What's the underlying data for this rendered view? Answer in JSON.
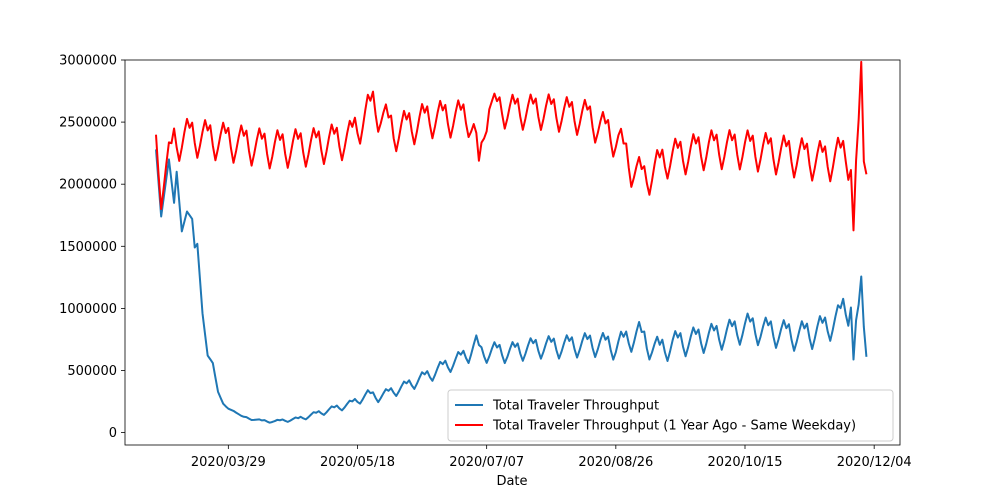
{
  "chart_data": {
    "type": "line",
    "title": "",
    "xlabel": "Date",
    "ylabel": "",
    "x_start": "2020-03-01",
    "x_end": "2020-12-01",
    "xlim": [
      "2020-02-18",
      "2020-12-14"
    ],
    "ylim": [
      -100000,
      3000000
    ],
    "x_ticks": [
      "2020/03/29",
      "2020/05/18",
      "2020/07/07",
      "2020/08/26",
      "2020/10/15",
      "2020/12/04"
    ],
    "y_ticks": [
      "0",
      "500000",
      "1000000",
      "1500000",
      "2000000",
      "2500000",
      "3000000"
    ],
    "grid": false,
    "legend_position": "lower-right",
    "series": [
      {
        "name": "Total Traveler Throughput",
        "color": "#1f77b4",
        "anchors": [
          [
            "2020-03-01",
            2280000
          ],
          [
            "2020-03-03",
            1740000
          ],
          [
            "2020-03-06",
            2200000
          ],
          [
            "2020-03-08",
            1850000
          ],
          [
            "2020-03-09",
            2100000
          ],
          [
            "2020-03-11",
            1620000
          ],
          [
            "2020-03-13",
            1780000
          ],
          [
            "2020-03-15",
            1720000
          ],
          [
            "2020-03-16",
            1490000
          ],
          [
            "2020-03-17",
            1520000
          ],
          [
            "2020-03-19",
            960000
          ],
          [
            "2020-03-21",
            620000
          ],
          [
            "2020-03-23",
            560000
          ],
          [
            "2020-03-25",
            330000
          ],
          [
            "2020-03-27",
            230000
          ],
          [
            "2020-03-29",
            190000
          ],
          [
            "2020-03-31",
            180000
          ],
          [
            "2020-04-03",
            130000
          ],
          [
            "2020-04-07",
            110000
          ],
          [
            "2020-04-11",
            95000
          ],
          [
            "2020-04-16",
            90000
          ],
          [
            "2020-04-20",
            100000
          ],
          [
            "2020-04-25",
            110000
          ],
          [
            "2020-04-30",
            140000
          ],
          [
            "2020-05-05",
            170000
          ],
          [
            "2020-05-10",
            200000
          ],
          [
            "2020-05-15",
            230000
          ],
          [
            "2020-05-18",
            260000
          ],
          [
            "2020-05-22",
            310000
          ],
          [
            "2020-05-26",
            290000
          ],
          [
            "2020-05-31",
            330000
          ],
          [
            "2020-06-05",
            370000
          ],
          [
            "2020-06-10",
            420000
          ],
          [
            "2020-06-15",
            470000
          ],
          [
            "2020-06-20",
            530000
          ],
          [
            "2020-06-25",
            580000
          ],
          [
            "2020-06-30",
            640000
          ],
          [
            "2020-07-03",
            720000
          ],
          [
            "2020-07-05",
            640000
          ],
          [
            "2020-07-10",
            660000
          ],
          [
            "2020-07-15",
            650000
          ],
          [
            "2020-07-20",
            670000
          ],
          [
            "2020-07-25",
            690000
          ],
          [
            "2020-07-31",
            700000
          ],
          [
            "2020-08-05",
            700000
          ],
          [
            "2020-08-10",
            710000
          ],
          [
            "2020-08-15",
            720000
          ],
          [
            "2020-08-20",
            720000
          ],
          [
            "2020-08-26",
            700000
          ],
          [
            "2020-08-31",
            760000
          ],
          [
            "2020-09-04",
            800000
          ],
          [
            "2020-09-07",
            720000
          ],
          [
            "2020-09-12",
            670000
          ],
          [
            "2020-09-17",
            720000
          ],
          [
            "2020-09-22",
            740000
          ],
          [
            "2020-09-27",
            760000
          ],
          [
            "2020-10-02",
            780000
          ],
          [
            "2020-10-07",
            800000
          ],
          [
            "2020-10-12",
            830000
          ],
          [
            "2020-10-16",
            860000
          ],
          [
            "2020-10-21",
            830000
          ],
          [
            "2020-10-26",
            820000
          ],
          [
            "2020-10-31",
            800000
          ],
          [
            "2020-11-05",
            790000
          ],
          [
            "2020-11-10",
            810000
          ],
          [
            "2020-11-15",
            850000
          ],
          [
            "2020-11-20",
            920000
          ],
          [
            "2020-11-22",
            1000000
          ],
          [
            "2020-11-24",
            1000000
          ],
          [
            "2020-11-25",
            1070000
          ],
          [
            "2020-11-26",
            560000
          ],
          [
            "2020-11-27",
            800000
          ],
          [
            "2020-11-29",
            1180000
          ],
          [
            "2020-11-30",
            900000
          ],
          [
            "2020-12-01",
            750000
          ]
        ],
        "weekly_amplitude": [
          [
            "2020-03-01",
            0
          ],
          [
            "2020-03-20",
            0
          ],
          [
            "2020-04-20",
            15000
          ],
          [
            "2020-06-01",
            50000
          ],
          [
            "2020-07-10",
            90000
          ],
          [
            "2020-09-01",
            120000
          ],
          [
            "2020-11-20",
            140000
          ],
          [
            "2020-12-01",
            140000
          ]
        ]
      },
      {
        "name": "Total Traveler Throughput (1 Year Ago - Same Weekday)",
        "color": "#ff0000",
        "anchors": [
          [
            "2020-03-01",
            2300000
          ],
          [
            "2020-03-03",
            1980000
          ],
          [
            "2020-03-08",
            2350000
          ],
          [
            "2020-03-14",
            2400000
          ],
          [
            "2020-03-31",
            2350000
          ],
          [
            "2020-04-15",
            2300000
          ],
          [
            "2020-05-01",
            2320000
          ],
          [
            "2020-05-15",
            2380000
          ],
          [
            "2020-05-24",
            2650000
          ],
          [
            "2020-06-01",
            2430000
          ],
          [
            "2020-06-15",
            2540000
          ],
          [
            "2020-06-30",
            2550000
          ],
          [
            "2020-07-02",
            2450000
          ],
          [
            "2020-07-04",
            2150000
          ],
          [
            "2020-07-08",
            2650000
          ],
          [
            "2020-07-15",
            2600000
          ],
          [
            "2020-07-31",
            2600000
          ],
          [
            "2020-08-15",
            2550000
          ],
          [
            "2020-08-27",
            2360000
          ],
          [
            "2020-09-01",
            2150000
          ],
          [
            "2020-09-06",
            2050000
          ],
          [
            "2020-09-15",
            2220000
          ],
          [
            "2020-10-01",
            2300000
          ],
          [
            "2020-10-15",
            2300000
          ],
          [
            "2020-10-31",
            2250000
          ],
          [
            "2020-11-15",
            2200000
          ],
          [
            "2020-11-23",
            2250000
          ],
          [
            "2020-11-25",
            2200000
          ],
          [
            "2020-11-26",
            1590000
          ],
          [
            "2020-11-27",
            2050000
          ],
          [
            "2020-11-29",
            2880000
          ],
          [
            "2020-11-30",
            2250000
          ],
          [
            "2020-12-01",
            2270000
          ]
        ],
        "weekly_amplitude": [
          [
            "2020-03-01",
            180000
          ],
          [
            "2020-07-02",
            170000
          ],
          [
            "2020-07-06",
            90000
          ],
          [
            "2020-07-14",
            160000
          ],
          [
            "2020-11-20",
            190000
          ],
          [
            "2020-12-01",
            190000
          ]
        ]
      }
    ]
  }
}
